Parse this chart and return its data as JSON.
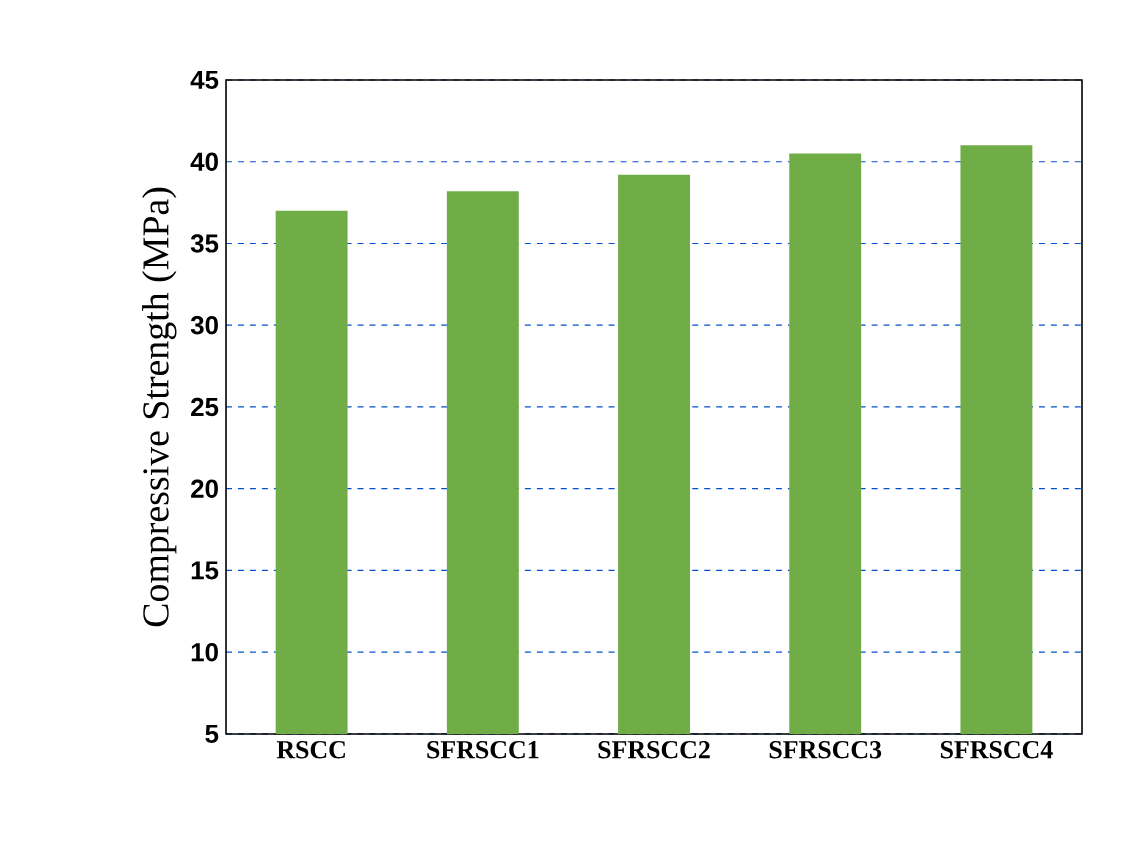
{
  "chart_data": {
    "type": "bar",
    "ylabel": "Compressive Strength (MPa)",
    "categories": [
      "RSCC",
      "SFRSCC1",
      "SFRSCC2",
      "SFRSCC3",
      "SFRSCC4"
    ],
    "values": [
      37.0,
      38.2,
      39.2,
      40.5,
      41.0
    ],
    "color": "#70ad47",
    "ylim": [
      5,
      45
    ],
    "yticks": [
      5,
      10,
      15,
      20,
      25,
      30,
      35,
      40,
      45
    ],
    "grid": "y"
  }
}
